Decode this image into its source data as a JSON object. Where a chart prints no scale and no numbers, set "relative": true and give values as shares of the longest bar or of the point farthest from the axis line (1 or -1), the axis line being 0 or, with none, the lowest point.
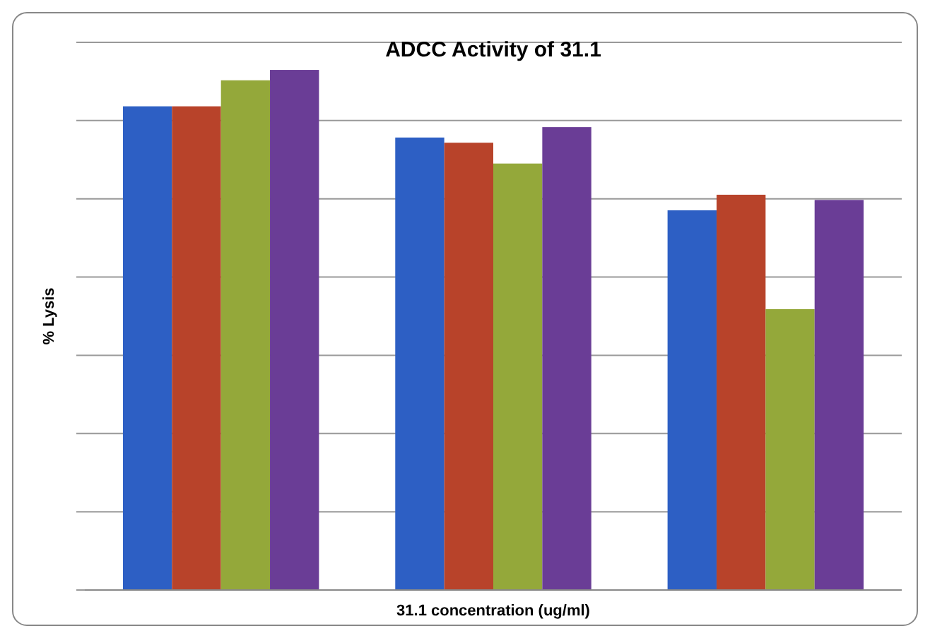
{
  "chart_data": {
    "type": "bar",
    "title": "ADCC Activity of 31.1",
    "xlabel": "31.1 concentration (ug/ml)",
    "ylabel": "% Lysis",
    "relative": true,
    "grid": true,
    "categories": [
      null,
      null,
      null
    ],
    "series": [
      {
        "color": "#2d5fc4",
        "values": [
          0.93,
          0.87,
          0.73
        ]
      },
      {
        "color": "#b8432a",
        "values": [
          0.93,
          0.86,
          0.76
        ]
      },
      {
        "color": "#94a83a",
        "values": [
          0.98,
          0.82,
          0.54
        ]
      },
      {
        "color": "#6a3d96",
        "values": [
          1,
          0.89,
          0.75
        ]
      }
    ]
  }
}
